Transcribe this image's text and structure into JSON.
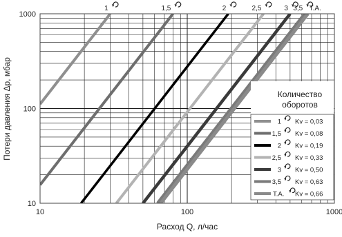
{
  "chart_data": {
    "type": "line",
    "xlabel": "Расход Q, л/час",
    "ylabel": "Потери давления  Δр, мбар",
    "x_scale": "log",
    "y_scale": "log",
    "xlim": [
      10,
      1000
    ],
    "ylim": [
      10,
      1000
    ],
    "x_ticks": [
      "10",
      "100",
      "1000"
    ],
    "y_ticks": [
      "10",
      "100",
      "1000"
    ],
    "grid": true,
    "legend_title": "Количество оборотов",
    "legend_position": "right",
    "series": [
      {
        "name": "1",
        "kv": "Kv = 0,03",
        "top_label": "1",
        "color": "#8f8f8f",
        "x": [
          10,
          30
        ],
        "y": [
          111.1,
          1000
        ]
      },
      {
        "name": "1,5",
        "kv": "Kv = 0,08",
        "top_label": "1,5",
        "color": "#6e6e6e",
        "x": [
          10,
          80
        ],
        "y": [
          15.6,
          1000
        ]
      },
      {
        "name": "2",
        "kv": "Kv = 0,19",
        "top_label": "2",
        "color": "#000000",
        "x": [
          19,
          190
        ],
        "y": [
          10,
          1000
        ]
      },
      {
        "name": "2,5",
        "kv": "Kv = 0,33",
        "top_label": "2,5",
        "color": "#b3b3b3",
        "x": [
          33,
          330
        ],
        "y": [
          10,
          1000
        ]
      },
      {
        "name": "3",
        "kv": "Kv = 0,50",
        "top_label": "3",
        "color": "#3a3a3a",
        "x": [
          50,
          500
        ],
        "y": [
          10,
          1000
        ]
      },
      {
        "name": "3,5",
        "kv": "Kv = 0,63",
        "top_label": "3,5",
        "color": "#7a7a7a",
        "x": [
          63,
          630
        ],
        "y": [
          10,
          1000
        ]
      },
      {
        "name": "Т.А.",
        "kv": "Kv = 0,66",
        "top_label": "Т.А.",
        "color": "#8a8a8a",
        "x": [
          66,
          660
        ],
        "y": [
          10,
          1000
        ]
      }
    ]
  }
}
